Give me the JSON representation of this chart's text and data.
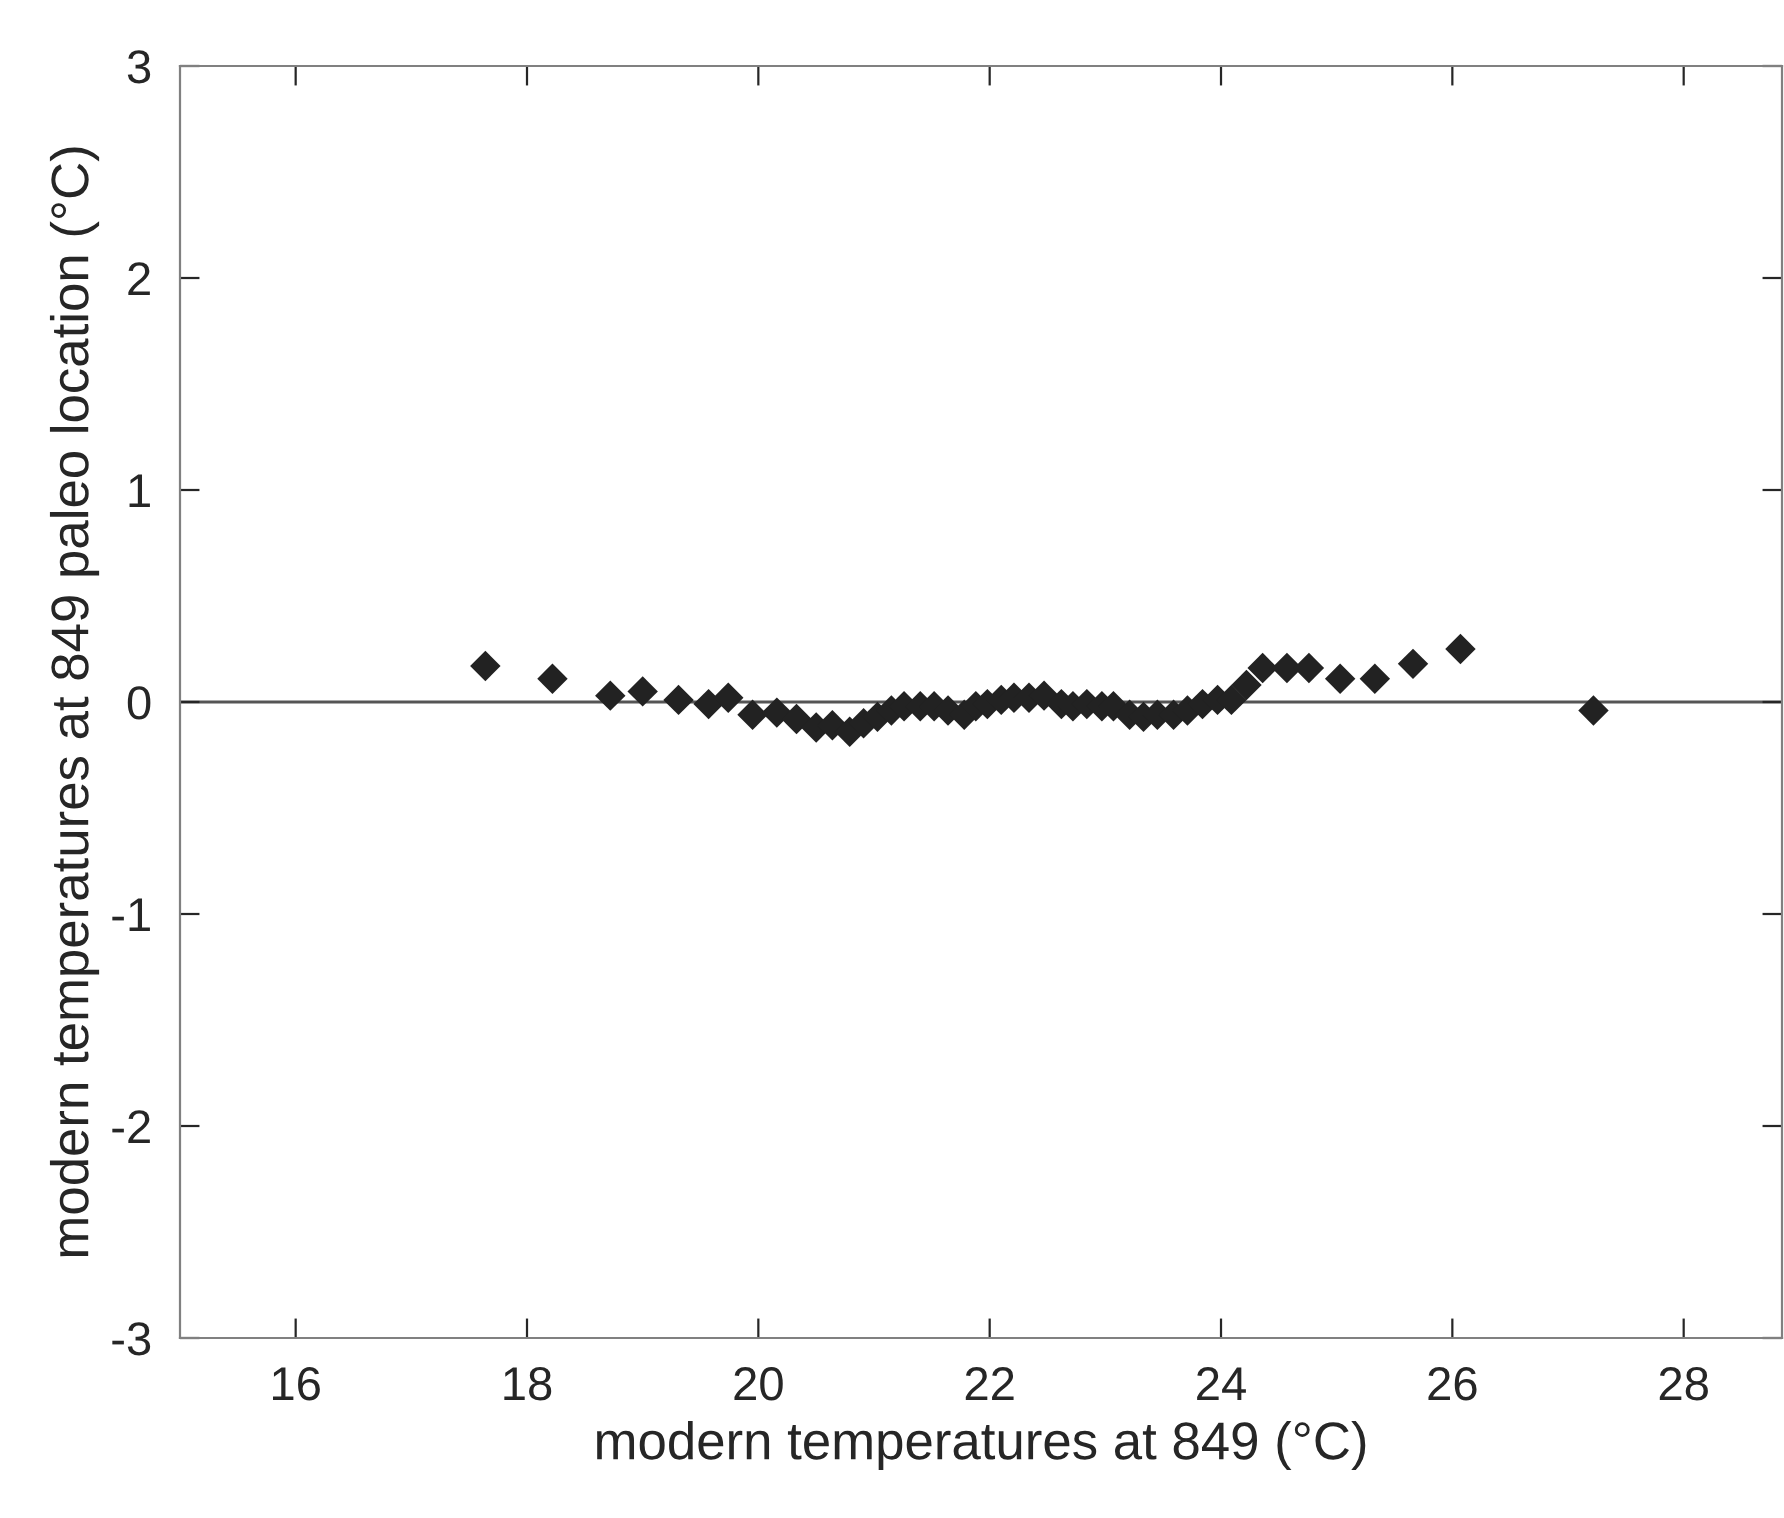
{
  "chart_data": {
    "type": "scatter",
    "xlabel": "modern temperatures at 849 (°C)",
    "ylabel": "modern temperatures at 849 paleo location (°C)",
    "x": [
      17.64,
      18.22,
      18.72,
      19.0,
      19.31,
      19.57,
      19.74,
      19.95,
      20.16,
      20.33,
      20.5,
      20.64,
      20.79,
      20.91,
      21.03,
      21.15,
      21.26,
      21.4,
      21.52,
      21.64,
      21.78,
      21.88,
      21.98,
      22.1,
      22.21,
      22.34,
      22.47,
      22.62,
      22.72,
      22.84,
      22.97,
      23.07,
      23.21,
      23.33,
      23.45,
      23.59,
      23.71,
      23.84,
      23.97,
      24.09,
      24.22,
      24.36,
      24.57,
      24.76,
      25.03,
      25.33,
      25.66,
      26.07,
      27.22
    ],
    "values": [
      0.17,
      0.11,
      0.03,
      0.05,
      0.01,
      -0.01,
      0.02,
      -0.06,
      -0.05,
      -0.08,
      -0.12,
      -0.11,
      -0.14,
      -0.1,
      -0.07,
      -0.04,
      -0.02,
      -0.02,
      -0.02,
      -0.04,
      -0.06,
      -0.02,
      -0.01,
      0.01,
      0.02,
      0.02,
      0.03,
      -0.01,
      -0.02,
      -0.01,
      -0.02,
      -0.02,
      -0.06,
      -0.07,
      -0.06,
      -0.06,
      -0.04,
      -0.01,
      0.01,
      0.01,
      0.08,
      0.16,
      0.16,
      0.16,
      0.11,
      0.11,
      0.18,
      0.25,
      -0.04
    ],
    "color": "#222222",
    "marker": "diamond",
    "grid": false,
    "xlim": [
      15,
      28.85
    ],
    "xticks": [
      16,
      18,
      20,
      22,
      24,
      26,
      28
    ],
    "ylim": [
      -3,
      3
    ],
    "yticks": [
      {
        "value": -3,
        "label": "-3"
      },
      {
        "value": -2,
        "label": "-2"
      },
      {
        "value": -1,
        "label": "-1"
      },
      0,
      1,
      2,
      3
    ],
    "ref_lines": [
      {
        "axis": "y",
        "value": 0,
        "label": null,
        "color": "#555555"
      }
    ]
  }
}
